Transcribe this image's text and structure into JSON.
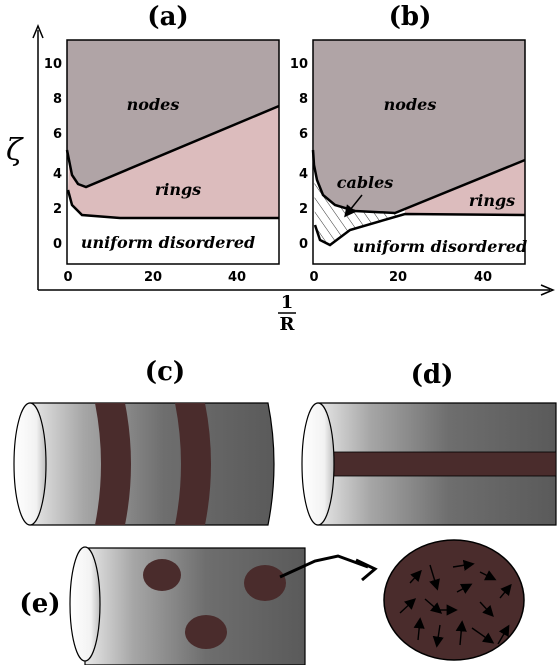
{
  "labels": {
    "panel_a": "(a)",
    "panel_b": "(b)",
    "panel_c": "(c)",
    "panel_d": "(d)",
    "panel_e": "(e)"
  },
  "axes": {
    "y_symbol": "ζ",
    "x_numerator": "1",
    "x_denominator": "R",
    "y_ticks": [
      "0",
      "2",
      "4",
      "6",
      "8",
      "10"
    ],
    "x_ticks": [
      "0",
      "20",
      "40"
    ]
  },
  "panel_a_regions": {
    "nodes": "nodes",
    "rings": "rings",
    "uniform": "uniform disordered"
  },
  "panel_b_regions": {
    "nodes": "nodes",
    "cables": "cables",
    "rings": "rings",
    "uniform": "uniform disordered"
  },
  "colors": {
    "nodes": "#b0a4a6",
    "rings": "#dcbcbd",
    "band": "#4a2c2c",
    "cylinder_dark": "#5a5a5a",
    "cylinder_light": "#d8d8d8"
  }
}
